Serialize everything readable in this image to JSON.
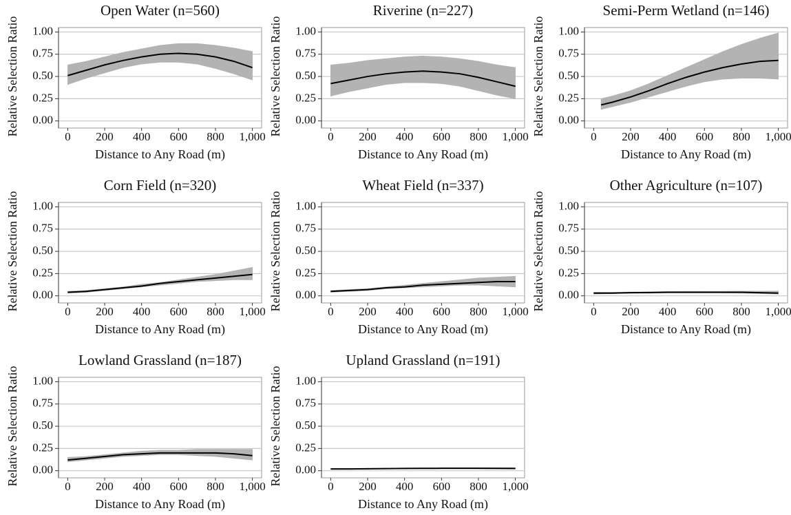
{
  "chart_data": [
    {
      "type": "line",
      "title": "Open Water (n=560)",
      "xlabel": "Distance to Any Road (m)",
      "ylabel": "Relative Selection Ratio",
      "x": [
        0,
        100,
        200,
        300,
        400,
        500,
        600,
        700,
        800,
        900,
        1000
      ],
      "values": [
        0.51,
        0.57,
        0.63,
        0.68,
        0.72,
        0.75,
        0.76,
        0.75,
        0.72,
        0.67,
        0.6
      ],
      "lower": [
        0.41,
        0.48,
        0.54,
        0.6,
        0.64,
        0.66,
        0.66,
        0.64,
        0.59,
        0.53,
        0.46
      ],
      "upper": [
        0.63,
        0.67,
        0.72,
        0.77,
        0.81,
        0.85,
        0.87,
        0.87,
        0.85,
        0.82,
        0.78
      ],
      "color": "#000000",
      "band_color": "#b3b3b3",
      "grid": true,
      "xlim": [
        -50,
        1050
      ],
      "ylim": [
        -0.08,
        1.05
      ],
      "xticks": [
        0,
        200,
        400,
        600,
        800,
        {
          "value": 1000,
          "label": "1,000"
        }
      ],
      "yticks": [
        {
          "value": 0,
          "label": "0.00"
        },
        {
          "value": 0.25,
          "label": "0.25"
        },
        {
          "value": 0.5,
          "label": "0.50"
        },
        {
          "value": 0.75,
          "label": "0.75"
        },
        {
          "value": 1,
          "label": "1.00"
        }
      ]
    },
    {
      "type": "line",
      "title": "Riverine (n=227)",
      "xlabel": "Distance to Any Road (m)",
      "ylabel": "Relative Selection Ratio",
      "x": [
        0,
        100,
        200,
        300,
        400,
        500,
        600,
        700,
        800,
        900,
        1000
      ],
      "values": [
        0.42,
        0.46,
        0.5,
        0.53,
        0.55,
        0.56,
        0.55,
        0.53,
        0.49,
        0.44,
        0.39
      ],
      "lower": [
        0.28,
        0.33,
        0.37,
        0.41,
        0.43,
        0.43,
        0.42,
        0.39,
        0.34,
        0.29,
        0.25
      ],
      "upper": [
        0.63,
        0.65,
        0.68,
        0.7,
        0.72,
        0.73,
        0.72,
        0.7,
        0.67,
        0.63,
        0.6
      ],
      "color": "#000000",
      "band_color": "#b3b3b3",
      "grid": true,
      "xlim": [
        -50,
        1050
      ],
      "ylim": [
        -0.08,
        1.05
      ],
      "xticks": [
        0,
        200,
        400,
        600,
        800,
        {
          "value": 1000,
          "label": "1,000"
        }
      ],
      "yticks": [
        {
          "value": 0,
          "label": "0.00"
        },
        {
          "value": 0.25,
          "label": "0.25"
        },
        {
          "value": 0.5,
          "label": "0.50"
        },
        {
          "value": 0.75,
          "label": "0.75"
        },
        {
          "value": 1,
          "label": "1.00"
        }
      ]
    },
    {
      "type": "line",
      "title": "Semi-Perm Wetland (n=146)",
      "xlabel": "Distance to Any Road (m)",
      "ylabel": "Relative Selection Ratio",
      "x": [
        40,
        100,
        200,
        300,
        400,
        500,
        600,
        700,
        800,
        900,
        1000
      ],
      "values": [
        0.18,
        0.21,
        0.27,
        0.34,
        0.42,
        0.49,
        0.55,
        0.6,
        0.64,
        0.67,
        0.68
      ],
      "lower": [
        0.13,
        0.16,
        0.21,
        0.27,
        0.33,
        0.39,
        0.44,
        0.47,
        0.48,
        0.48,
        0.47
      ],
      "upper": [
        0.25,
        0.28,
        0.34,
        0.42,
        0.51,
        0.6,
        0.69,
        0.78,
        0.86,
        0.93,
        0.99
      ],
      "color": "#000000",
      "band_color": "#b3b3b3",
      "grid": true,
      "xlim": [
        -50,
        1050
      ],
      "ylim": [
        -0.08,
        1.05
      ],
      "xticks": [
        0,
        200,
        400,
        600,
        800,
        {
          "value": 1000,
          "label": "1,000"
        }
      ],
      "yticks": [
        {
          "value": 0,
          "label": "0.00"
        },
        {
          "value": 0.25,
          "label": "0.25"
        },
        {
          "value": 0.5,
          "label": "0.50"
        },
        {
          "value": 0.75,
          "label": "0.75"
        },
        {
          "value": 1,
          "label": "1.00"
        }
      ]
    },
    {
      "type": "line",
      "title": "Corn Field (n=320)",
      "xlabel": "Distance to Any Road (m)",
      "ylabel": "Relative Selection Ratio",
      "x": [
        0,
        100,
        200,
        300,
        400,
        500,
        600,
        700,
        800,
        900,
        1000
      ],
      "values": [
        0.04,
        0.05,
        0.07,
        0.09,
        0.11,
        0.14,
        0.16,
        0.18,
        0.2,
        0.22,
        0.24
      ],
      "lower": [
        0.03,
        0.04,
        0.06,
        0.08,
        0.1,
        0.12,
        0.14,
        0.16,
        0.17,
        0.18,
        0.18
      ],
      "upper": [
        0.05,
        0.06,
        0.08,
        0.1,
        0.13,
        0.15,
        0.18,
        0.21,
        0.24,
        0.28,
        0.32
      ],
      "color": "#000000",
      "band_color": "#b3b3b3",
      "grid": true,
      "xlim": [
        -50,
        1050
      ],
      "ylim": [
        -0.08,
        1.05
      ],
      "xticks": [
        0,
        200,
        400,
        600,
        800,
        {
          "value": 1000,
          "label": "1,000"
        }
      ],
      "yticks": [
        {
          "value": 0,
          "label": "0.00"
        },
        {
          "value": 0.25,
          "label": "0.25"
        },
        {
          "value": 0.5,
          "label": "0.50"
        },
        {
          "value": 0.75,
          "label": "0.75"
        },
        {
          "value": 1,
          "label": "1.00"
        }
      ]
    },
    {
      "type": "line",
      "title": "Wheat Field (n=337)",
      "xlabel": "Distance to Any Road (m)",
      "ylabel": "Relative Selection Ratio",
      "x": [
        0,
        100,
        200,
        300,
        400,
        500,
        600,
        700,
        800,
        900,
        1000
      ],
      "values": [
        0.05,
        0.06,
        0.07,
        0.09,
        0.1,
        0.12,
        0.13,
        0.14,
        0.15,
        0.16,
        0.16
      ],
      "lower": [
        0.04,
        0.05,
        0.06,
        0.08,
        0.09,
        0.1,
        0.11,
        0.12,
        0.12,
        0.11,
        0.1
      ],
      "upper": [
        0.06,
        0.07,
        0.08,
        0.1,
        0.12,
        0.14,
        0.16,
        0.18,
        0.2,
        0.21,
        0.22
      ],
      "color": "#000000",
      "band_color": "#b3b3b3",
      "grid": true,
      "xlim": [
        -50,
        1050
      ],
      "ylim": [
        -0.08,
        1.05
      ],
      "xticks": [
        0,
        200,
        400,
        600,
        800,
        {
          "value": 1000,
          "label": "1,000"
        }
      ],
      "yticks": [
        {
          "value": 0,
          "label": "0.00"
        },
        {
          "value": 0.25,
          "label": "0.25"
        },
        {
          "value": 0.5,
          "label": "0.50"
        },
        {
          "value": 0.75,
          "label": "0.75"
        },
        {
          "value": 1,
          "label": "1.00"
        }
      ]
    },
    {
      "type": "line",
      "title": "Other Agriculture (n=107)",
      "xlabel": "Distance to Any Road (m)",
      "ylabel": "Relative Selection Ratio",
      "x": [
        0,
        100,
        200,
        300,
        400,
        500,
        600,
        700,
        800,
        900,
        1000
      ],
      "values": [
        0.03,
        0.03,
        0.035,
        0.037,
        0.04,
        0.04,
        0.04,
        0.04,
        0.04,
        0.035,
        0.03
      ],
      "lower": [
        0.02,
        0.025,
        0.03,
        0.03,
        0.033,
        0.033,
        0.033,
        0.032,
        0.03,
        0.025,
        0.02
      ],
      "upper": [
        0.04,
        0.04,
        0.043,
        0.045,
        0.048,
        0.05,
        0.05,
        0.05,
        0.052,
        0.052,
        0.053
      ],
      "color": "#000000",
      "band_color": "#b3b3b3",
      "grid": true,
      "xlim": [
        -50,
        1050
      ],
      "ylim": [
        -0.08,
        1.05
      ],
      "xticks": [
        0,
        200,
        400,
        600,
        800,
        {
          "value": 1000,
          "label": "1,000"
        }
      ],
      "yticks": [
        {
          "value": 0,
          "label": "0.00"
        },
        {
          "value": 0.25,
          "label": "0.25"
        },
        {
          "value": 0.5,
          "label": "0.50"
        },
        {
          "value": 0.75,
          "label": "0.75"
        },
        {
          "value": 1,
          "label": "1.00"
        }
      ]
    },
    {
      "type": "line",
      "title": "Lowland Grassland (n=187)",
      "xlabel": "Distance to Any Road (m)",
      "ylabel": "Relative Selection Ratio",
      "x": [
        0,
        100,
        200,
        300,
        400,
        500,
        600,
        700,
        800,
        900,
        1000
      ],
      "values": [
        0.12,
        0.14,
        0.16,
        0.18,
        0.19,
        0.2,
        0.2,
        0.2,
        0.2,
        0.19,
        0.17
      ],
      "lower": [
        0.1,
        0.12,
        0.14,
        0.16,
        0.17,
        0.18,
        0.18,
        0.17,
        0.16,
        0.14,
        0.12
      ],
      "upper": [
        0.15,
        0.16,
        0.18,
        0.2,
        0.22,
        0.23,
        0.23,
        0.24,
        0.24,
        0.24,
        0.24
      ],
      "color": "#000000",
      "band_color": "#b3b3b3",
      "grid": true,
      "xlim": [
        -50,
        1050
      ],
      "ylim": [
        -0.08,
        1.05
      ],
      "xticks": [
        0,
        200,
        400,
        600,
        800,
        {
          "value": 1000,
          "label": "1,000"
        }
      ],
      "yticks": [
        {
          "value": 0,
          "label": "0.00"
        },
        {
          "value": 0.25,
          "label": "0.25"
        },
        {
          "value": 0.5,
          "label": "0.50"
        },
        {
          "value": 0.75,
          "label": "0.75"
        },
        {
          "value": 1,
          "label": "1.00"
        }
      ]
    },
    {
      "type": "line",
      "title": "Upland Grassland (n=191)",
      "xlabel": "Distance to Any Road (m)",
      "ylabel": "Relative Selection Ratio",
      "x": [
        0,
        100,
        200,
        300,
        400,
        500,
        600,
        700,
        800,
        900,
        1000
      ],
      "values": [
        0.02,
        0.02,
        0.022,
        0.024,
        0.025,
        0.026,
        0.027,
        0.027,
        0.027,
        0.026,
        0.025
      ],
      "lower": [
        0.015,
        0.016,
        0.018,
        0.02,
        0.021,
        0.022,
        0.022,
        0.022,
        0.021,
        0.02,
        0.019
      ],
      "upper": [
        0.025,
        0.025,
        0.026,
        0.028,
        0.03,
        0.031,
        0.032,
        0.033,
        0.033,
        0.033,
        0.032
      ],
      "color": "#000000",
      "band_color": "#b3b3b3",
      "grid": true,
      "xlim": [
        -50,
        1050
      ],
      "ylim": [
        -0.08,
        1.05
      ],
      "xticks": [
        0,
        200,
        400,
        600,
        800,
        {
          "value": 1000,
          "label": "1,000"
        }
      ],
      "yticks": [
        {
          "value": 0,
          "label": "0.00"
        },
        {
          "value": 0.25,
          "label": "0.25"
        },
        {
          "value": 0.5,
          "label": "0.50"
        },
        {
          "value": 0.75,
          "label": "0.75"
        },
        {
          "value": 1,
          "label": "1.00"
        }
      ]
    }
  ]
}
